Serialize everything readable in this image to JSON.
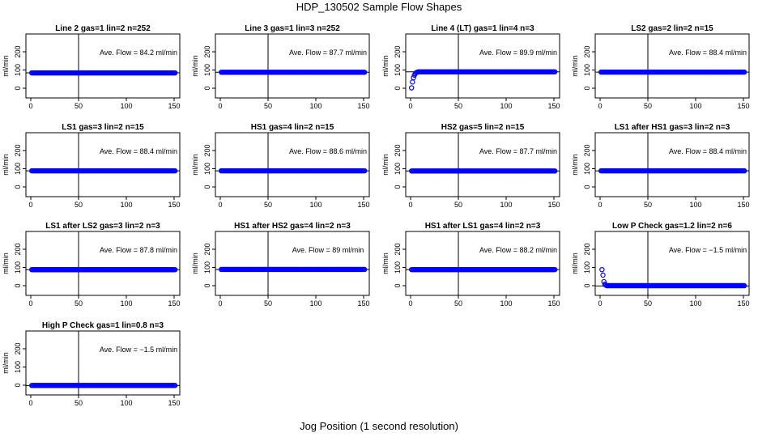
{
  "figure": {
    "title": "HDP_130502  Sample Flow Shapes",
    "xlabel": "Jog Position (1 second resolution)",
    "colors": {
      "points": "#0000ff",
      "lines": "#000000"
    }
  },
  "chart_data": [
    {
      "type": "scatter",
      "title": "Line 2 gas=1 lin=2 n=252",
      "ylabel": "ml/min",
      "xlim": [
        0,
        150
      ],
      "ylim": [
        0,
        200
      ],
      "xticks": [
        0,
        50,
        100,
        150
      ],
      "yticks": [
        0,
        100,
        200
      ],
      "annotation": "Ave. Flow =  84.2  ml/min",
      "mean": 84.2,
      "vline": 50,
      "series": [
        {
          "shape": "flat",
          "x_range": [
            1,
            151
          ],
          "y": 84.2
        }
      ]
    },
    {
      "type": "scatter",
      "title": "Line 3 gas=1 lin=3 n=252",
      "ylabel": "ml/min",
      "xlim": [
        0,
        150
      ],
      "ylim": [
        0,
        200
      ],
      "xticks": [
        0,
        50,
        100,
        150
      ],
      "yticks": [
        0,
        100,
        200
      ],
      "annotation": "Ave. Flow =  87.7  ml/min",
      "mean": 87.7,
      "vline": 50,
      "series": [
        {
          "shape": "flat",
          "x_range": [
            1,
            151
          ],
          "y": 87.7
        }
      ]
    },
    {
      "type": "scatter",
      "title": "Line 4 (LT) gas=1 lin=4 n=3",
      "ylabel": "ml/min",
      "xlim": [
        0,
        150
      ],
      "ylim": [
        0,
        200
      ],
      "xticks": [
        0,
        50,
        100,
        150
      ],
      "yticks": [
        0,
        100,
        200
      ],
      "annotation": "Ave. Flow =  89.9  ml/min",
      "mean": 89.9,
      "vline": 50,
      "series": [
        {
          "shape": "flat",
          "x_range": [
            8,
            151
          ],
          "y": 89.9,
          "extra_points": [
            [
              1,
              2
            ],
            [
              2,
              34
            ],
            [
              3,
              58
            ],
            [
              4,
              72
            ],
            [
              5,
              81
            ],
            [
              6,
              86
            ],
            [
              7,
              88
            ]
          ]
        }
      ]
    },
    {
      "type": "scatter",
      "title": "LS2 gas=2 lin=2 n=15",
      "ylabel": "ml/min",
      "xlim": [
        0,
        150
      ],
      "ylim": [
        0,
        200
      ],
      "xticks": [
        0,
        50,
        100,
        150
      ],
      "yticks": [
        0,
        100,
        200
      ],
      "annotation": "Ave. Flow =  88.4  ml/min",
      "mean": 88.4,
      "vline": 50,
      "series": [
        {
          "shape": "flat",
          "x_range": [
            1,
            151
          ],
          "y": 88.4
        }
      ]
    },
    {
      "type": "scatter",
      "title": "LS1 gas=3 lin=2 n=15",
      "ylabel": "ml/min",
      "xlim": [
        0,
        150
      ],
      "ylim": [
        0,
        200
      ],
      "xticks": [
        0,
        50,
        100,
        150
      ],
      "yticks": [
        0,
        100,
        200
      ],
      "annotation": "Ave. Flow =  88.4  ml/min",
      "mean": 88.4,
      "vline": 50,
      "series": [
        {
          "shape": "flat",
          "x_range": [
            1,
            151
          ],
          "y": 88.4
        }
      ]
    },
    {
      "type": "scatter",
      "title": "HS1 gas=4 lin=2 n=15",
      "ylabel": "ml/min",
      "xlim": [
        0,
        150
      ],
      "ylim": [
        0,
        200
      ],
      "xticks": [
        0,
        50,
        100,
        150
      ],
      "yticks": [
        0,
        100,
        200
      ],
      "annotation": "Ave. Flow =  88.6  ml/min",
      "mean": 88.6,
      "vline": 50,
      "series": [
        {
          "shape": "flat",
          "x_range": [
            1,
            151
          ],
          "y": 88.6
        }
      ]
    },
    {
      "type": "scatter",
      "title": "HS2 gas=5 lin=2 n=15",
      "ylabel": "ml/min",
      "xlim": [
        0,
        150
      ],
      "ylim": [
        0,
        200
      ],
      "xticks": [
        0,
        50,
        100,
        150
      ],
      "yticks": [
        0,
        100,
        200
      ],
      "annotation": "Ave. Flow =  87.7  ml/min",
      "mean": 87.7,
      "vline": 50,
      "series": [
        {
          "shape": "flat",
          "x_range": [
            1,
            151
          ],
          "y": 87.7
        }
      ]
    },
    {
      "type": "scatter",
      "title": "LS1 after HS1 gas=3 lin=2 n=3",
      "ylabel": "ml/min",
      "xlim": [
        0,
        150
      ],
      "ylim": [
        0,
        200
      ],
      "xticks": [
        0,
        50,
        100,
        150
      ],
      "yticks": [
        0,
        100,
        200
      ],
      "annotation": "Ave. Flow =  88.4  ml/min",
      "mean": 88.4,
      "vline": 50,
      "series": [
        {
          "shape": "flat",
          "x_range": [
            1,
            151
          ],
          "y": 88.4
        }
      ]
    },
    {
      "type": "scatter",
      "title": "LS1 after LS2 gas=3 lin=2 n=3",
      "ylabel": "ml/min",
      "xlim": [
        0,
        150
      ],
      "ylim": [
        0,
        200
      ],
      "xticks": [
        0,
        50,
        100,
        150
      ],
      "yticks": [
        0,
        100,
        200
      ],
      "annotation": "Ave. Flow =  87.8  ml/min",
      "mean": 87.8,
      "vline": 50,
      "series": [
        {
          "shape": "flat",
          "x_range": [
            1,
            151
          ],
          "y": 87.8
        }
      ]
    },
    {
      "type": "scatter",
      "title": "HS1 after HS2 gas=4 lin=2 n=3",
      "ylabel": "ml/min",
      "xlim": [
        0,
        150
      ],
      "ylim": [
        0,
        200
      ],
      "xticks": [
        0,
        50,
        100,
        150
      ],
      "yticks": [
        0,
        100,
        200
      ],
      "annotation": "Ave. Flow =  89  ml/min",
      "mean": 89,
      "vline": 50,
      "series": [
        {
          "shape": "flat",
          "x_range": [
            1,
            151
          ],
          "y": 89
        }
      ]
    },
    {
      "type": "scatter",
      "title": "HS1 after LS1 gas=4 lin=2 n=3",
      "ylabel": "ml/min",
      "xlim": [
        0,
        150
      ],
      "ylim": [
        0,
        200
      ],
      "xticks": [
        0,
        50,
        100,
        150
      ],
      "yticks": [
        0,
        100,
        200
      ],
      "annotation": "Ave. Flow =  88.2  ml/min",
      "mean": 88.2,
      "vline": 50,
      "series": [
        {
          "shape": "flat",
          "x_range": [
            1,
            151
          ],
          "y": 88.2
        }
      ]
    },
    {
      "type": "scatter",
      "title": "Low P Check gas=1.2 lin=2 n=6",
      "ylabel": "ml/min",
      "xlim": [
        0,
        150
      ],
      "ylim": [
        0,
        200
      ],
      "xticks": [
        0,
        50,
        100,
        150
      ],
      "yticks": [
        0,
        100,
        200
      ],
      "annotation": "Ave. Flow =  −1.5  ml/min",
      "mean": -1.5,
      "vline": 50,
      "series": [
        {
          "shape": "flat",
          "x_range": [
            7,
            151
          ],
          "y": 0,
          "extra_points": [
            [
              2,
              88
            ],
            [
              3,
              58
            ],
            [
              4,
              22
            ],
            [
              5,
              8
            ],
            [
              6,
              3
            ]
          ]
        }
      ]
    },
    {
      "type": "scatter",
      "title": "High P Check gas=1 lin=0.8 n=3",
      "ylabel": "ml/min",
      "xlim": [
        0,
        150
      ],
      "ylim": [
        0,
        200
      ],
      "xticks": [
        0,
        50,
        100,
        150
      ],
      "yticks": [
        0,
        100,
        200
      ],
      "annotation": "Ave. Flow =  −1.5  ml/min",
      "mean": -1.5,
      "vline": 50,
      "series": [
        {
          "shape": "flat",
          "x_range": [
            1,
            151
          ],
          "y": -1.5
        }
      ]
    }
  ]
}
